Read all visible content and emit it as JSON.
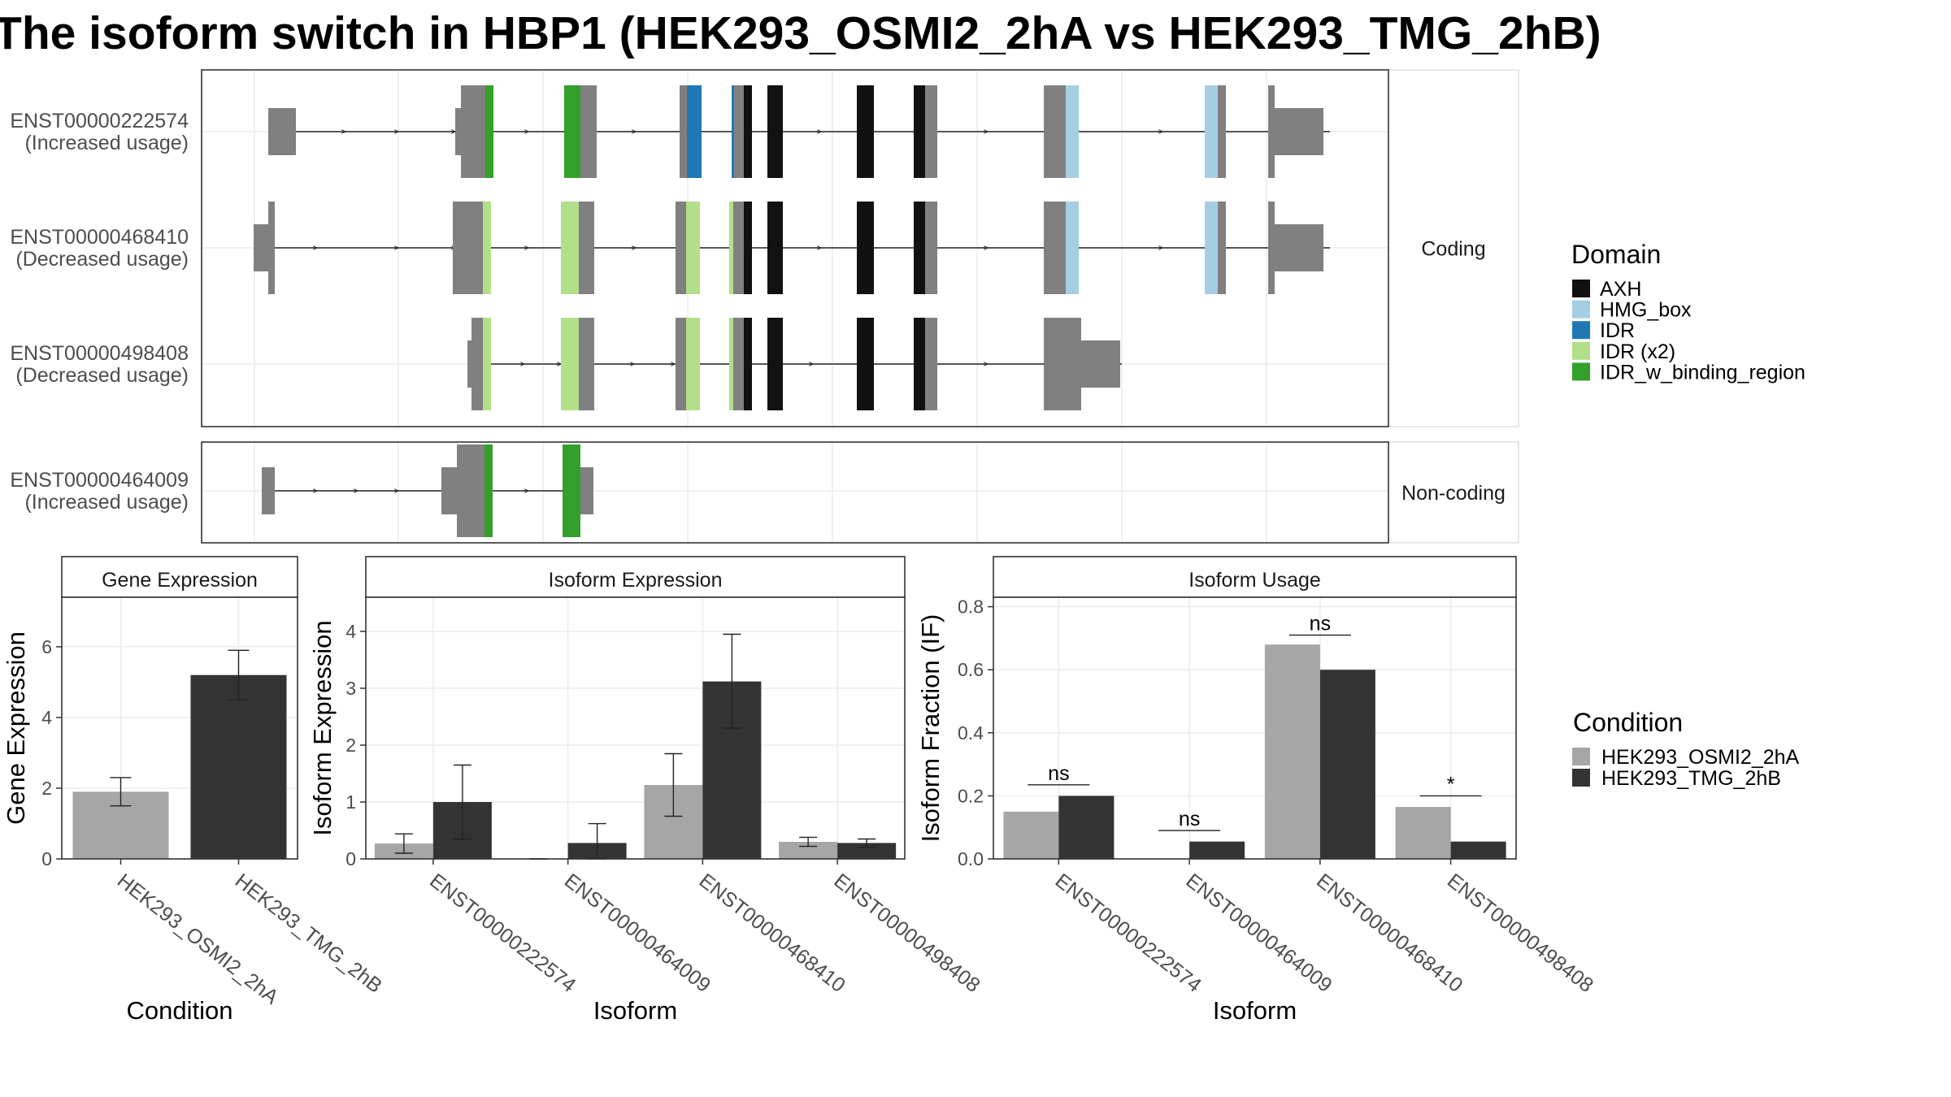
{
  "title": "The isoform switch in HBP1 (HEK293_OSMI2_2hA vs HEK293_TMG_2hB)",
  "colors": {
    "axh": "#111111",
    "hmg_box": "#a6cee3",
    "idr": "#1f78b4",
    "idr_x2": "#b2df8a",
    "idr_w_binding_region": "#33a02c",
    "exon": "#808080",
    "cond_a": "#a6a6a6",
    "cond_b": "#333333"
  },
  "structure": {
    "facets": [
      "Coding",
      "Non-coding"
    ],
    "transcripts": [
      {
        "id": "ENST00000222574",
        "usage": "(Increased usage)",
        "facet": "Coding"
      },
      {
        "id": "ENST00000468410",
        "usage": "(Decreased usage)",
        "facet": "Coding"
      },
      {
        "id": "ENST00000498408",
        "usage": "(Decreased usage)",
        "facet": "Coding"
      },
      {
        "id": "ENST00000464009",
        "usage": "(Increased usage)",
        "facet": "Non-coding"
      }
    ],
    "domain_legend": {
      "title": "Domain",
      "items": [
        {
          "label": "AXH",
          "color": "#111111"
        },
        {
          "label": "HMG_box",
          "color": "#a6cee3"
        },
        {
          "label": "IDR",
          "color": "#1f78b4"
        },
        {
          "label": "IDR (x2)",
          "color": "#b2df8a"
        },
        {
          "label": "IDR_w_binding_region",
          "color": "#33a02c"
        }
      ]
    }
  },
  "chart_data": [
    {
      "type": "bar",
      "title": "Gene Expression",
      "xlabel": "Condition",
      "ylabel": "Gene Expression",
      "ylim": [
        0,
        7.4
      ],
      "yticks": [
        0,
        2,
        4,
        6
      ],
      "categories": [
        "HEK293_OSMI2_2hA",
        "HEK293_TMG_2hB"
      ],
      "values": [
        1.9,
        5.2
      ],
      "errors": [
        [
          1.5,
          2.3
        ],
        [
          4.5,
          5.9
        ]
      ],
      "colors": [
        "#a6a6a6",
        "#333333"
      ]
    },
    {
      "type": "bar",
      "title": "Isoform Expression",
      "xlabel": "Isoform",
      "ylabel": "Isoform Expression",
      "ylim": [
        0,
        4.6
      ],
      "yticks": [
        0,
        1,
        2,
        3,
        4
      ],
      "categories": [
        "ENST00000222574",
        "ENST00000464009",
        "ENST00000468410",
        "ENST00000498408"
      ],
      "series": [
        {
          "name": "HEK293_OSMI2_2hA",
          "values": [
            0.27,
            0.0,
            1.3,
            0.3
          ],
          "errors": [
            [
              0.1,
              0.44
            ],
            [
              0.0,
              0.0
            ],
            [
              0.75,
              1.85
            ],
            [
              0.22,
              0.38
            ]
          ]
        },
        {
          "name": "HEK293_TMG_2hB",
          "values": [
            1.0,
            0.28,
            3.12,
            0.28
          ],
          "errors": [
            [
              0.35,
              1.65
            ],
            [
              0.0,
              0.62
            ],
            [
              2.3,
              3.95
            ],
            [
              0.2,
              0.35
            ]
          ]
        }
      ]
    },
    {
      "type": "bar",
      "title": "Isoform Usage",
      "xlabel": "Isoform",
      "ylabel": "Isoform Fraction (IF)",
      "ylim": [
        0,
        0.83
      ],
      "yticks": [
        0.0,
        0.2,
        0.4,
        0.6,
        0.8
      ],
      "ytick_labels": [
        "0.0",
        "0.2",
        "0.4",
        "0.6",
        "0.8"
      ],
      "categories": [
        "ENST00000222574",
        "ENST00000464009",
        "ENST00000468410",
        "ENST00000498408"
      ],
      "series": [
        {
          "name": "HEK293_OSMI2_2hA",
          "values": [
            0.15,
            0.0,
            0.68,
            0.165
          ]
        },
        {
          "name": "HEK293_TMG_2hB",
          "values": [
            0.2,
            0.055,
            0.6,
            0.055
          ]
        }
      ],
      "significance": [
        "ns",
        "ns",
        "ns",
        "*"
      ],
      "significance_y": [
        0.235,
        0.09,
        0.71,
        0.2
      ]
    }
  ],
  "condition_legend": {
    "title": "Condition",
    "items": [
      {
        "label": "HEK293_OSMI2_2hA",
        "color": "#a6a6a6"
      },
      {
        "label": "HEK293_TMG_2hB",
        "color": "#333333"
      }
    ]
  }
}
